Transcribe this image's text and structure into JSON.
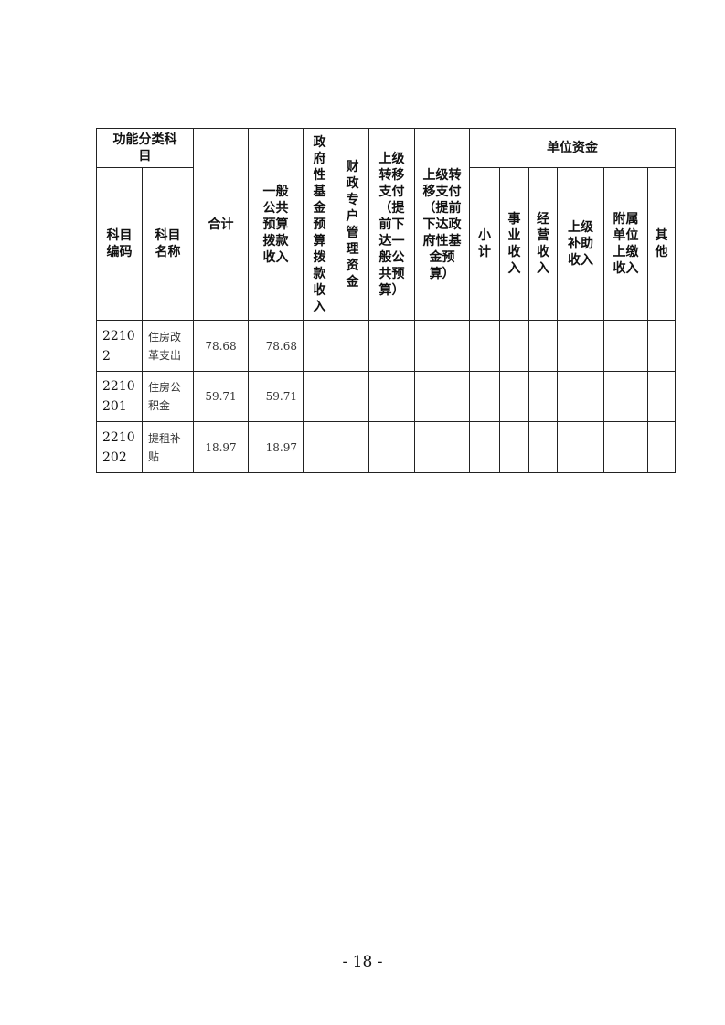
{
  "table": {
    "headers": {
      "func_category": "功能分类科\n目",
      "subject_code": "科目\n编码",
      "subject_name": "科目\n名称",
      "total": "合计",
      "general_public_budget": "一般\n公共\n预算\n拨款\n收入",
      "gov_fund_budget": "政\n府\n性\n基\n金\n预\n算\n拨\n款\n收\n入",
      "fiscal_special_account": "财\n政\n专\n户\n管\n理\n资\n金",
      "transfer_general": "上级\n转移\n支付\n（提\n前下\n达一\n般公\n共预\n算）",
      "transfer_gov_fund": "上级转\n移支付\n（提前\n下达政\n府性基\n金预\n算）",
      "unit_funds": "单位资金",
      "subtotal": "小\n计",
      "business_income": "事\n业\n收\n入",
      "operating_income": "经\n营\n收\n入",
      "superior_subsidy": "上级\n补助\n收入",
      "affiliated_income": "附属\n单位\n上缴\n收入",
      "other": "其\n他"
    },
    "rows": [
      {
        "code": "2210\n2",
        "name": "住房改\n革支出",
        "total": "78.68",
        "general": "78.68"
      },
      {
        "code": "2210\n201",
        "name": "住房公\n积金",
        "total": "59.71",
        "general": "59.71"
      },
      {
        "code": "2210\n202",
        "name": "提租补\n贴",
        "total": "18.97",
        "general": "18.97"
      }
    ]
  },
  "page_number": "- 18 -"
}
